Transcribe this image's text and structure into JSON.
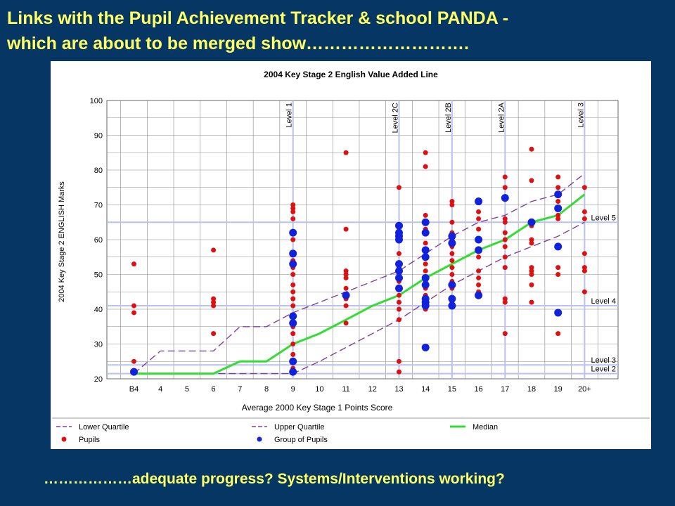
{
  "slide": {
    "title_line1": "Links with the Pupil Achievement Tracker & school PANDA -",
    "title_line2": "which are about to be merged show……………………….",
    "footer": "………………adequate progress? Systems/Interventions working?"
  },
  "colors": {
    "background": "#063664",
    "slide_text": "#ffff66",
    "lower_quartile": "#8040a0",
    "upper_quartile": "#8040a0",
    "median": "#33dd33",
    "pupils": "#dd1111",
    "group_of_pupils": "#1122dd",
    "level_line": "#b8c2ee",
    "grid": "#888888"
  },
  "chart_data": {
    "type": "scatter",
    "title": "2004 Key Stage 2 English Value Added Line",
    "xlabel": "Average 2000 Key Stage 1 Points Score",
    "ylabel": "2004 Key Stage 2 ENGLISH Marks",
    "categories": [
      "B4",
      "4",
      "5",
      "6",
      "7",
      "8",
      "9",
      "10",
      "11",
      "12",
      "13",
      "14",
      "15",
      "16",
      "17",
      "18",
      "19",
      "20+"
    ],
    "ylim": [
      20,
      100
    ],
    "yticks": [
      20,
      30,
      40,
      50,
      60,
      70,
      80,
      90,
      100
    ],
    "grid": true,
    "legend_position": "bottom",
    "vertical_levels": [
      {
        "label": "Level 1",
        "x": "9"
      },
      {
        "label": "Level 2C",
        "x": "13"
      },
      {
        "label": "Level 2B",
        "x": "15"
      },
      {
        "label": "Level 2A",
        "x": "17"
      },
      {
        "label": "Level 3",
        "x": "20+"
      }
    ],
    "horizontal_levels": [
      {
        "label": "Level 5",
        "y": 65
      },
      {
        "label": "Level 4",
        "y": 41
      },
      {
        "label": "Level 3",
        "y": 24
      },
      {
        "label": "Level 2",
        "y": 21.5
      }
    ],
    "series": [
      {
        "name": "Lower Quartile",
        "style": "dashed",
        "x": [
          "B4",
          "4",
          "5",
          "6",
          "7",
          "8",
          "9",
          "10",
          "11",
          "12",
          "13",
          "14",
          "15",
          "16",
          "17",
          "18",
          "19",
          "20+"
        ],
        "y": [
          21.5,
          21.5,
          21.5,
          21.5,
          21.5,
          21.5,
          21.5,
          25,
          29,
          33,
          37,
          42,
          47,
          51,
          55,
          58,
          61,
          65
        ]
      },
      {
        "name": "Upper Quartile",
        "style": "dashed",
        "x": [
          "B4",
          "4",
          "5",
          "6",
          "7",
          "8",
          "9",
          "10",
          "11",
          "12",
          "13",
          "14",
          "15",
          "16",
          "17",
          "18",
          "19",
          "20+"
        ],
        "y": [
          21.5,
          28,
          28,
          28,
          35,
          35,
          39,
          42,
          45,
          48,
          51,
          56,
          61,
          65,
          67,
          71,
          73,
          79
        ]
      },
      {
        "name": "Median",
        "style": "solid",
        "x": [
          "B4",
          "4",
          "5",
          "6",
          "7",
          "8",
          "9",
          "10",
          "11",
          "12",
          "13",
          "14",
          "15",
          "16",
          "17",
          "18",
          "19",
          "20+"
        ],
        "y": [
          21.5,
          21.5,
          21.5,
          21.5,
          25,
          25,
          30,
          33,
          37,
          41,
          44,
          49,
          53,
          57,
          60,
          65,
          67,
          73
        ]
      },
      {
        "name": "Pupils",
        "style": "points",
        "points": [
          [
            "B4",
            53
          ],
          [
            "B4",
            41
          ],
          [
            "B4",
            39
          ],
          [
            "B4",
            25
          ],
          [
            "B4",
            22
          ],
          [
            "6",
            57
          ],
          [
            "6",
            43
          ],
          [
            "6",
            42
          ],
          [
            "6",
            41
          ],
          [
            "6",
            33
          ],
          [
            "9",
            70
          ],
          [
            "9",
            69
          ],
          [
            "9",
            68
          ],
          [
            "9",
            66
          ],
          [
            "9",
            60
          ],
          [
            "9",
            56
          ],
          [
            "9",
            54
          ],
          [
            "9",
            52
          ],
          [
            "9",
            50
          ],
          [
            "9",
            47
          ],
          [
            "9",
            45
          ],
          [
            "9",
            43
          ],
          [
            "9",
            41
          ],
          [
            "9",
            38
          ],
          [
            "9",
            35
          ],
          [
            "9",
            33
          ],
          [
            "9",
            30
          ],
          [
            "9",
            27
          ],
          [
            "9",
            23
          ],
          [
            "11",
            85
          ],
          [
            "11",
            63
          ],
          [
            "11",
            51
          ],
          [
            "11",
            50
          ],
          [
            "11",
            49
          ],
          [
            "11",
            46
          ],
          [
            "11",
            44
          ],
          [
            "11",
            43
          ],
          [
            "11",
            41
          ],
          [
            "11",
            36
          ],
          [
            "13",
            75
          ],
          [
            "13",
            60
          ],
          [
            "13",
            56
          ],
          [
            "13",
            52
          ],
          [
            "13",
            50
          ],
          [
            "13",
            48
          ],
          [
            "13",
            46
          ],
          [
            "13",
            44
          ],
          [
            "13",
            42
          ],
          [
            "13",
            40
          ],
          [
            "13",
            37
          ],
          [
            "13",
            25
          ],
          [
            "13",
            22
          ],
          [
            "14",
            85
          ],
          [
            "14",
            81
          ],
          [
            "14",
            67
          ],
          [
            "14",
            63
          ],
          [
            "14",
            59
          ],
          [
            "14",
            57
          ],
          [
            "14",
            55
          ],
          [
            "14",
            53
          ],
          [
            "14",
            51
          ],
          [
            "14",
            48
          ],
          [
            "14",
            46
          ],
          [
            "14",
            44
          ],
          [
            "14",
            42
          ],
          [
            "14",
            40
          ],
          [
            "15",
            71
          ],
          [
            "15",
            70
          ],
          [
            "15",
            65
          ],
          [
            "15",
            62
          ],
          [
            "15",
            60
          ],
          [
            "15",
            58
          ],
          [
            "15",
            56
          ],
          [
            "15",
            54
          ],
          [
            "15",
            52
          ],
          [
            "15",
            50
          ],
          [
            "15",
            48
          ],
          [
            "15",
            46
          ],
          [
            "15",
            42
          ],
          [
            "16",
            71
          ],
          [
            "16",
            68
          ],
          [
            "16",
            66
          ],
          [
            "16",
            63
          ],
          [
            "16",
            57
          ],
          [
            "16",
            55
          ],
          [
            "16",
            51
          ],
          [
            "16",
            49
          ],
          [
            "16",
            47
          ],
          [
            "16",
            45
          ],
          [
            "17",
            78
          ],
          [
            "17",
            75
          ],
          [
            "17",
            72
          ],
          [
            "17",
            66
          ],
          [
            "17",
            65
          ],
          [
            "17",
            62
          ],
          [
            "17",
            60
          ],
          [
            "17",
            58
          ],
          [
            "17",
            55
          ],
          [
            "17",
            52
          ],
          [
            "17",
            43
          ],
          [
            "17",
            42
          ],
          [
            "17",
            33
          ],
          [
            "18",
            86
          ],
          [
            "18",
            77
          ],
          [
            "18",
            65
          ],
          [
            "18",
            64
          ],
          [
            "18",
            60
          ],
          [
            "18",
            59
          ],
          [
            "18",
            52
          ],
          [
            "18",
            51
          ],
          [
            "18",
            50
          ],
          [
            "18",
            47
          ],
          [
            "18",
            42
          ],
          [
            "19",
            78
          ],
          [
            "19",
            75
          ],
          [
            "19",
            71
          ],
          [
            "19",
            67
          ],
          [
            "19",
            66
          ],
          [
            "19",
            52
          ],
          [
            "19",
            50
          ],
          [
            "19",
            33
          ],
          [
            "20+",
            75
          ],
          [
            "20+",
            68
          ],
          [
            "20+",
            66
          ],
          [
            "20+",
            56
          ],
          [
            "20+",
            52
          ],
          [
            "20+",
            51
          ],
          [
            "20+",
            45
          ]
        ]
      },
      {
        "name": "Group of Pupils",
        "style": "points",
        "points": [
          [
            "B4",
            22
          ],
          [
            "9",
            62
          ],
          [
            "9",
            56
          ],
          [
            "9",
            53
          ],
          [
            "9",
            38
          ],
          [
            "9",
            36
          ],
          [
            "9",
            25
          ],
          [
            "9",
            22
          ],
          [
            "11",
            44
          ],
          [
            "13",
            64
          ],
          [
            "13",
            62
          ],
          [
            "13",
            61
          ],
          [
            "13",
            60
          ],
          [
            "13",
            53
          ],
          [
            "13",
            51
          ],
          [
            "13",
            49
          ],
          [
            "13",
            46
          ],
          [
            "14",
            65
          ],
          [
            "14",
            62
          ],
          [
            "14",
            57
          ],
          [
            "14",
            55
          ],
          [
            "14",
            49
          ],
          [
            "14",
            47
          ],
          [
            "14",
            43
          ],
          [
            "14",
            42
          ],
          [
            "14",
            41
          ],
          [
            "14",
            29
          ],
          [
            "15",
            61
          ],
          [
            "15",
            59
          ],
          [
            "15",
            47
          ],
          [
            "15",
            43
          ],
          [
            "15",
            41
          ],
          [
            "16",
            71
          ],
          [
            "16",
            60
          ],
          [
            "16",
            57
          ],
          [
            "16",
            44
          ],
          [
            "17",
            72
          ],
          [
            "18",
            65
          ],
          [
            "19",
            73
          ],
          [
            "19",
            69
          ],
          [
            "19",
            58
          ],
          [
            "19",
            39
          ]
        ]
      }
    ]
  }
}
